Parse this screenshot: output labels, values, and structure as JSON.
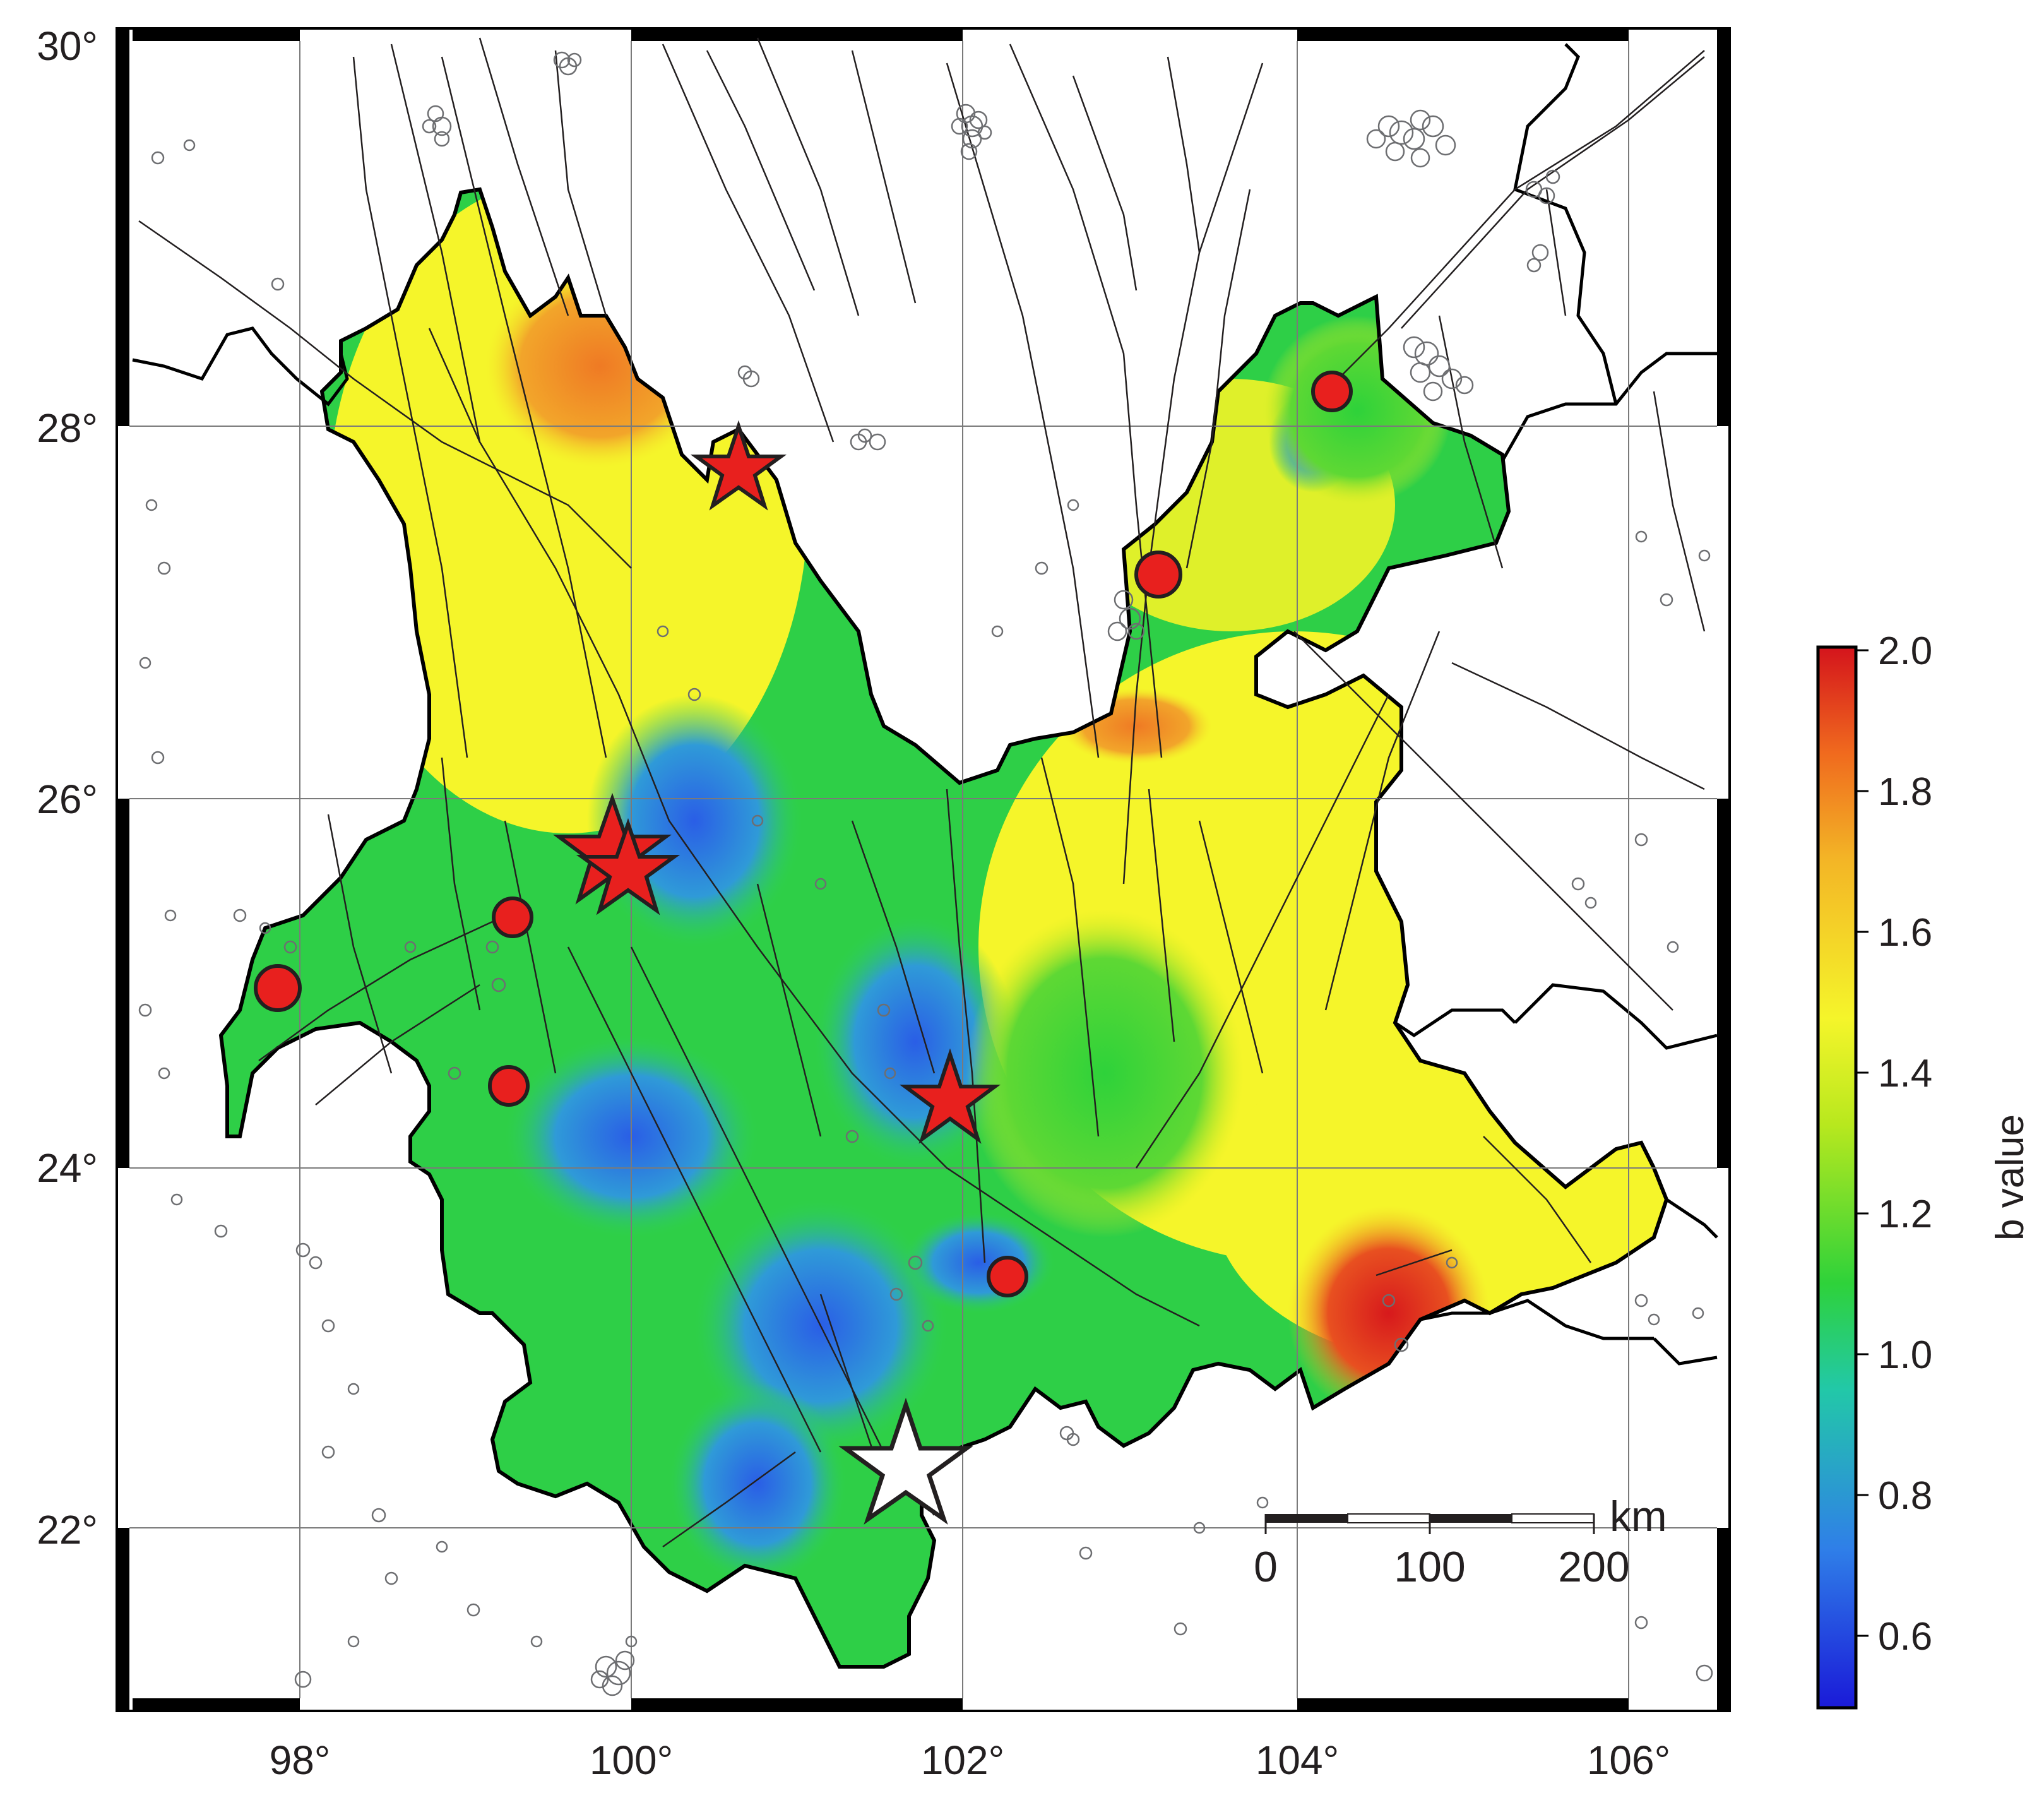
{
  "map": {
    "x_ticks": [
      "98°",
      "100°",
      "102°",
      "104°",
      "106°"
    ],
    "y_ticks": [
      "30°",
      "28°",
      "26°",
      "24°",
      "22°"
    ],
    "scale_bar": {
      "unit": "km",
      "labels": [
        "0",
        "100",
        "200"
      ]
    },
    "colorbar": {
      "title": "b value",
      "range": [
        0.5,
        2.0
      ],
      "tick_labels": [
        "2.0",
        "1.8",
        "1.6",
        "1.4",
        "1.2",
        "1.0",
        "0.8",
        "0.6"
      ]
    },
    "colors": {
      "high": "#d7191c",
      "medium_high": "#f0821e",
      "mid": "#f5f52a",
      "low_mid": "#2ed25a",
      "low": "#2a66e6",
      "event_marker": "#e8201e",
      "epicenter_star": "#ffffff",
      "seismicity_circles": "#6d6e71",
      "faults": "#231f20"
    },
    "symbols": [
      "red-star-marker",
      "red-circle-marker",
      "white-star-marker",
      "gray-circle-seismicity"
    ]
  }
}
